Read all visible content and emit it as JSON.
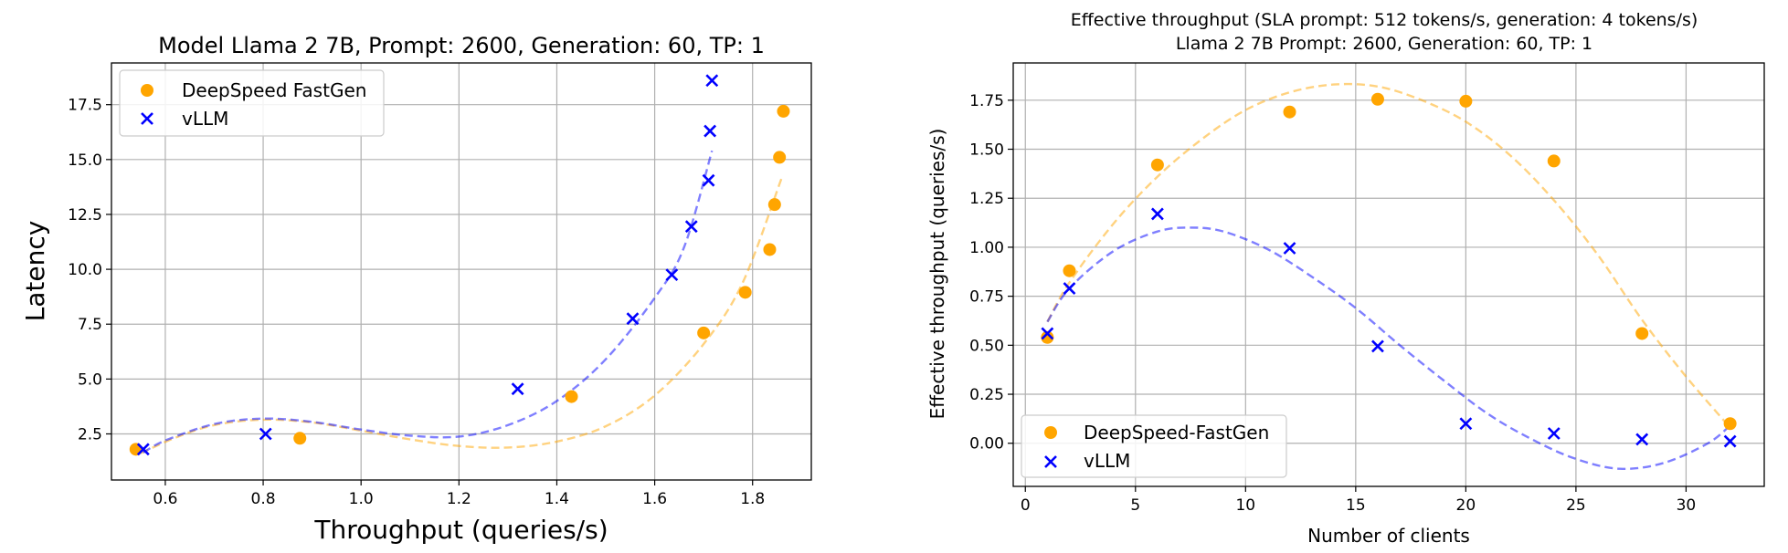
{
  "chart_data": [
    {
      "type": "scatter",
      "title": "Model Llama 2 7B, Prompt: 2600, Generation: 60, TP: 1",
      "xlabel": "Throughput (queries/s)",
      "ylabel": "Latency",
      "xlim": [
        0.49,
        1.92
      ],
      "ylim": [
        0.4,
        19.4
      ],
      "xticks": [
        0.6,
        0.8,
        1.0,
        1.2,
        1.4,
        1.6,
        1.8
      ],
      "xtick_labels": [
        "0.6",
        "0.8",
        "1.0",
        "1.2",
        "1.4",
        "1.6",
        "1.8"
      ],
      "yticks": [
        2.5,
        5.0,
        7.5,
        10.0,
        12.5,
        15.0,
        17.5
      ],
      "ytick_labels": [
        "2.5",
        "5.0",
        "7.5",
        "10.0",
        "12.5",
        "15.0",
        "17.5"
      ],
      "grid": true,
      "legend_position": "top-left",
      "series": [
        {
          "name": "DeepSpeed FastGen",
          "marker": "circle",
          "color": "#FFA500",
          "points": [
            [
              0.54,
              1.8
            ],
            [
              0.875,
              2.3
            ],
            [
              1.43,
              4.2
            ],
            [
              1.7,
              7.1
            ],
            [
              1.785,
              8.95
            ],
            [
              1.835,
              10.9
            ],
            [
              1.845,
              12.95
            ],
            [
              1.855,
              15.1
            ],
            [
              1.863,
              17.2
            ]
          ],
          "fit": [
            [
              0.55,
              1.62
            ],
            [
              0.62,
              2.32
            ],
            [
              0.7,
              2.9
            ],
            [
              0.8,
              3.15
            ],
            [
              0.9,
              3.02
            ],
            [
              1.0,
              2.65
            ],
            [
              1.1,
              2.25
            ],
            [
              1.2,
              1.95
            ],
            [
              1.3,
              1.88
            ],
            [
              1.4,
              2.15
            ],
            [
              1.5,
              2.85
            ],
            [
              1.6,
              4.25
            ],
            [
              1.7,
              6.6
            ],
            [
              1.78,
              9.4
            ],
            [
              1.86,
              14.2
            ]
          ]
        },
        {
          "name": "vLLM",
          "marker": "x",
          "color": "#0000FF",
          "points": [
            [
              0.555,
              1.8
            ],
            [
              0.805,
              2.5
            ],
            [
              1.32,
              4.55
            ],
            [
              1.555,
              7.75
            ],
            [
              1.635,
              9.75
            ],
            [
              1.675,
              11.95
            ],
            [
              1.71,
              14.05
            ],
            [
              1.713,
              16.3
            ],
            [
              1.717,
              18.6
            ]
          ],
          "fit": [
            [
              0.555,
              1.65
            ],
            [
              0.6,
              2.2
            ],
            [
              0.7,
              2.95
            ],
            [
              0.8,
              3.2
            ],
            [
              0.9,
              3.05
            ],
            [
              1.0,
              2.7
            ],
            [
              1.1,
              2.42
            ],
            [
              1.2,
              2.38
            ],
            [
              1.3,
              2.9
            ],
            [
              1.4,
              4.0
            ],
            [
              1.5,
              5.9
            ],
            [
              1.6,
              8.7
            ],
            [
              1.66,
              11.0
            ],
            [
              1.717,
              15.4
            ]
          ]
        }
      ]
    },
    {
      "type": "scatter",
      "title": "Effective throughput (SLA prompt: 512 tokens/s, generation: 4 tokens/s)",
      "subtitle": "Llama 2 7B Prompt: 2600, Generation: 60, TP: 1",
      "xlabel": "Number of clients",
      "ylabel": "Effective throughput (queries/s)",
      "xlim": [
        -0.55,
        33.55
      ],
      "ylim": [
        -0.22,
        1.94
      ],
      "xticks": [
        0,
        5,
        10,
        15,
        20,
        25,
        30
      ],
      "xtick_labels": [
        "0",
        "5",
        "10",
        "15",
        "20",
        "25",
        "30"
      ],
      "yticks": [
        0.0,
        0.25,
        0.5,
        0.75,
        1.0,
        1.25,
        1.5,
        1.75
      ],
      "ytick_labels": [
        "0.00",
        "0.25",
        "0.50",
        "0.75",
        "1.00",
        "1.25",
        "1.50",
        "1.75"
      ],
      "grid": true,
      "legend_position": "bottom-left",
      "series": [
        {
          "name": "DeepSpeed-FastGen",
          "marker": "circle",
          "color": "#FFA500",
          "points": [
            [
              1,
              0.54
            ],
            [
              2,
              0.88
            ],
            [
              6,
              1.42
            ],
            [
              12,
              1.69
            ],
            [
              16,
              1.755
            ],
            [
              20,
              1.745
            ],
            [
              24,
              1.44
            ],
            [
              28,
              0.56
            ],
            [
              32,
              0.1
            ]
          ],
          "fit": [
            [
              1,
              0.62
            ],
            [
              2,
              0.82
            ],
            [
              4,
              1.12
            ],
            [
              6,
              1.36
            ],
            [
              8,
              1.55
            ],
            [
              10,
              1.7
            ],
            [
              12,
              1.79
            ],
            [
              14,
              1.83
            ],
            [
              16,
              1.82
            ],
            [
              18,
              1.75
            ],
            [
              20,
              1.64
            ],
            [
              22,
              1.47
            ],
            [
              24,
              1.24
            ],
            [
              26,
              0.96
            ],
            [
              28,
              0.63
            ],
            [
              30,
              0.34
            ],
            [
              32,
              0.08
            ]
          ]
        },
        {
          "name": "vLLM",
          "marker": "x",
          "color": "#0000FF",
          "points": [
            [
              1,
              0.56
            ],
            [
              2,
              0.79
            ],
            [
              6,
              1.17
            ],
            [
              12,
              0.995
            ],
            [
              16,
              0.495
            ],
            [
              20,
              0.1
            ],
            [
              24,
              0.05
            ],
            [
              28,
              0.02
            ],
            [
              32,
              0.01
            ]
          ],
          "fit": [
            [
              1,
              0.62
            ],
            [
              2,
              0.79
            ],
            [
              4,
              0.98
            ],
            [
              6,
              1.08
            ],
            [
              7.5,
              1.1
            ],
            [
              9,
              1.08
            ],
            [
              11,
              0.99
            ],
            [
              13,
              0.85
            ],
            [
              15,
              0.69
            ],
            [
              17,
              0.5
            ],
            [
              19,
              0.32
            ],
            [
              21,
              0.15
            ],
            [
              23,
              0.02
            ],
            [
              25,
              -0.08
            ],
            [
              27,
              -0.13
            ],
            [
              29,
              -0.1
            ],
            [
              31,
              0.0
            ],
            [
              32,
              0.09
            ]
          ]
        }
      ]
    }
  ]
}
